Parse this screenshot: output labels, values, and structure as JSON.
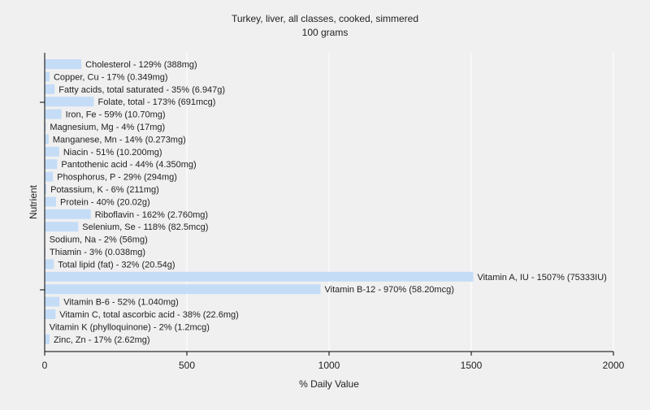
{
  "chart_data": {
    "type": "bar",
    "orientation": "horizontal",
    "title": "Turkey, liver, all classes, cooked, simmered",
    "subtitle": "100 grams",
    "xlabel": "% Daily Value",
    "ylabel": "Nutrient",
    "xlim": [
      0,
      2000
    ],
    "xticks": [
      0,
      500,
      1000,
      1500,
      2000
    ],
    "grid": true,
    "legend": "none",
    "bar_color": "#c5dcf7",
    "grid_color": "#ffffff",
    "categories": [
      "Cholesterol",
      "Copper, Cu",
      "Fatty acids, total saturated",
      "Folate, total",
      "Iron, Fe",
      "Magnesium, Mg",
      "Manganese, Mn",
      "Niacin",
      "Pantothenic acid",
      "Phosphorus, P",
      "Potassium, K",
      "Protein",
      "Riboflavin",
      "Selenium, Se",
      "Sodium, Na",
      "Thiamin",
      "Total lipid (fat)",
      "Vitamin A, IU",
      "Vitamin B-12",
      "Vitamin B-6",
      "Vitamin C, total ascorbic acid",
      "Vitamin K (phylloquinone)",
      "Zinc, Zn"
    ],
    "values": [
      129,
      17,
      35,
      173,
      59,
      4,
      14,
      51,
      44,
      29,
      6,
      40,
      162,
      118,
      2,
      3,
      32,
      1507,
      970,
      52,
      38,
      2,
      17
    ],
    "labels": [
      "Cholesterol - 129% (388mg)",
      "Copper, Cu - 17% (0.349mg)",
      "Fatty acids, total saturated - 35% (6.947g)",
      "Folate, total - 173% (691mcg)",
      "Iron, Fe - 59% (10.70mg)",
      "Magnesium, Mg - 4% (17mg)",
      "Manganese, Mn - 14% (0.273mg)",
      "Niacin - 51% (10.200mg)",
      "Pantothenic acid - 44% (4.350mg)",
      "Phosphorus, P - 29% (294mg)",
      "Potassium, K - 6% (211mg)",
      "Protein - 40% (20.02g)",
      "Riboflavin - 162% (2.760mg)",
      "Selenium, Se - 118% (82.5mcg)",
      "Sodium, Na - 2% (56mg)",
      "Thiamin - 3% (0.038mg)",
      "Total lipid (fat) - 32% (20.54g)",
      "Vitamin A, IU - 1507% (75333IU)",
      "Vitamin B-12 - 970% (58.20mcg)",
      "Vitamin B-6 - 52% (1.040mg)",
      "Vitamin C, total ascorbic acid - 38% (22.6mg)",
      "Vitamin K (phylloquinone) - 2% (1.2mcg)",
      "Zinc, Zn - 17% (2.62mg)"
    ]
  }
}
